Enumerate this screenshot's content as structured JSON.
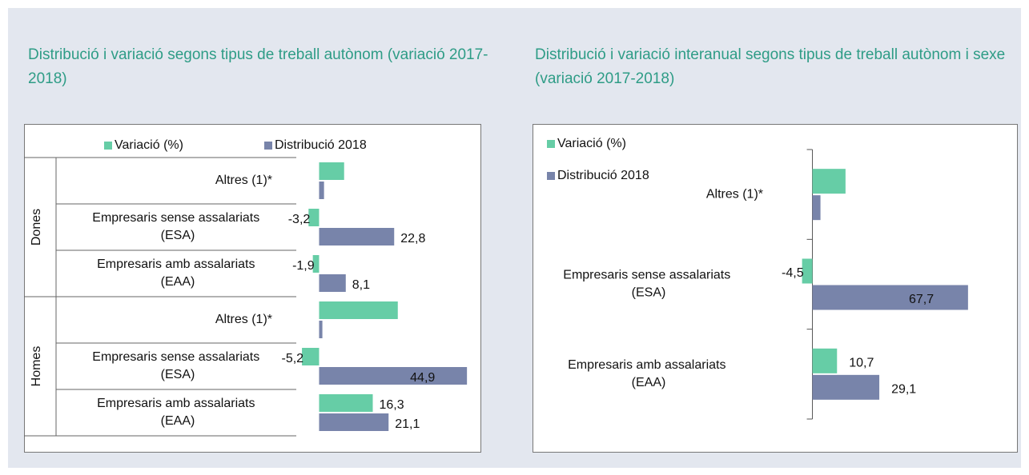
{
  "chart_data": [
    {
      "type": "hbar",
      "title": "Distribució i variació segons tipus de treball autònom (variació 2017-2018)",
      "legend": "top",
      "groups": [
        {
          "name": "Dones",
          "categories": [
            "Altres (1)*",
            "Empresaris sense assalariats (ESA)",
            "Empresaris amb assalariats (EAA)"
          ]
        },
        {
          "name": "Homes",
          "categories": [
            "Altres (1)*",
            "Empresaris sense assalariats (ESA)",
            "Empresaris amb assalariats (EAA)"
          ]
        }
      ],
      "xlim": [
        -13,
        49
      ],
      "series": [
        {
          "name": "Variació (%)",
          "color": "#66cda6",
          "values": [
            7.6,
            -3.2,
            -1.9,
            23.9,
            -5.2,
            16.3
          ],
          "value_labels": [
            null,
            "-3,2",
            "-1,9",
            null,
            "-5,2",
            "16,3"
          ]
        },
        {
          "name": "Distribució 2018",
          "color": "#7884aa",
          "values": [
            1.5,
            22.8,
            8.1,
            1.0,
            44.9,
            21.1
          ],
          "value_labels": [
            null,
            "22,8",
            "8,1",
            null,
            "44,9",
            "21,1"
          ]
        }
      ]
    },
    {
      "type": "hbar",
      "title": "Distribució i variació interanual segons tipus de treball autònom i sexe (variació 2017-2018)",
      "legend": "top-left",
      "categories": [
        "Altres (1)*",
        "Empresaris sense assalariats (ESA)",
        "Empresaris amb assalariats (EAA)"
      ],
      "xlim": [
        -19,
        89
      ],
      "series": [
        {
          "name": "Variació (%)",
          "color": "#66cda6",
          "values": [
            14.4,
            -4.5,
            10.7
          ],
          "value_labels": [
            null,
            "-4,5",
            "10,7"
          ]
        },
        {
          "name": "Distribució 2018",
          "color": "#7884aa",
          "values": [
            3.5,
            67.7,
            29.1
          ],
          "value_labels": [
            null,
            "67,7",
            "29,1"
          ]
        }
      ]
    }
  ]
}
